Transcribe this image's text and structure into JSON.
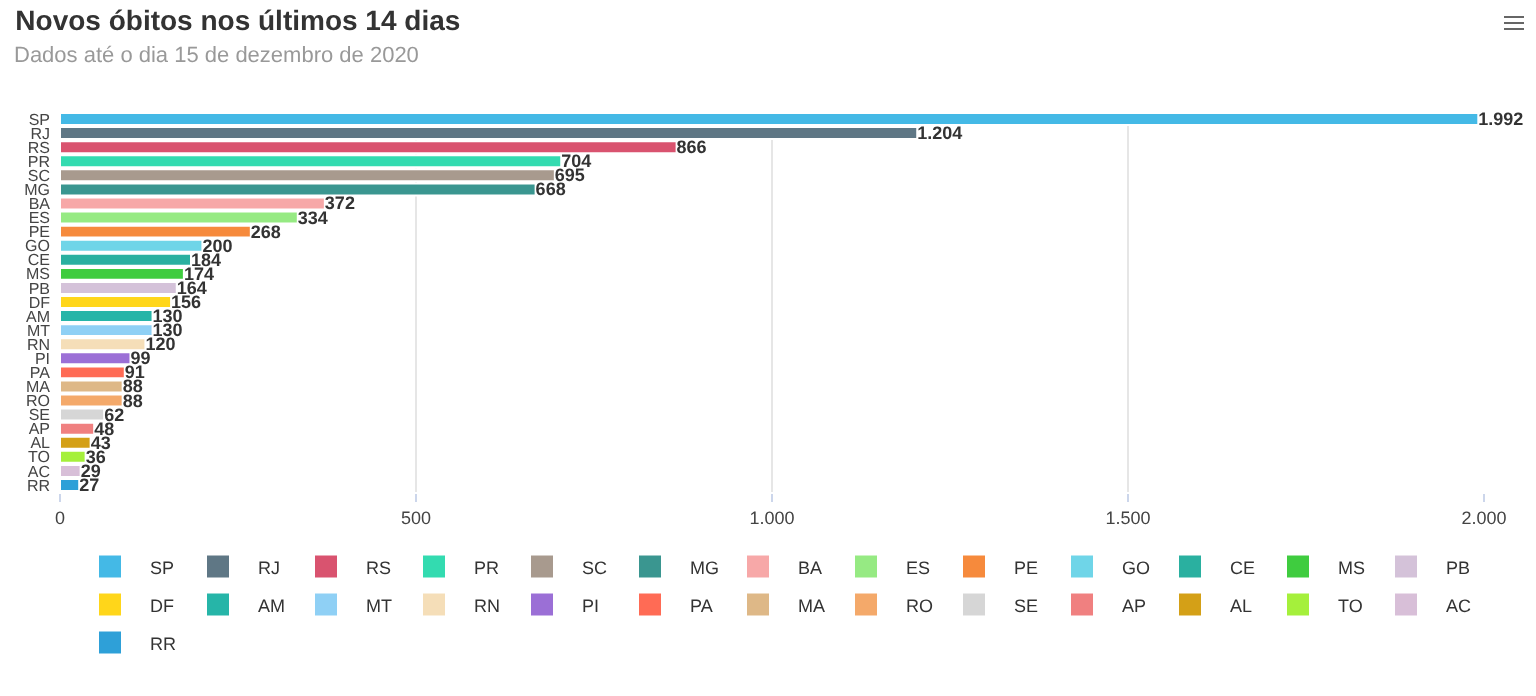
{
  "chart_data": {
    "type": "bar",
    "orientation": "horizontal",
    "title": "Novos óbitos nos últimos 14 dias",
    "subtitle": "Dados até o dia 15 de dezembro de 2020",
    "categories": [
      "SP",
      "RJ",
      "RS",
      "PR",
      "SC",
      "MG",
      "BA",
      "ES",
      "PE",
      "GO",
      "CE",
      "MS",
      "PB",
      "DF",
      "AM",
      "MT",
      "RN",
      "PI",
      "PA",
      "MA",
      "RO",
      "SE",
      "AP",
      "AL",
      "TO",
      "AC",
      "RR"
    ],
    "series": [
      {
        "name": "SP",
        "color": "#44b9e6",
        "values": [
          1992,
          null,
          null,
          null,
          null,
          null,
          null,
          null,
          null,
          null,
          null,
          null,
          null,
          null,
          null,
          null,
          null,
          null,
          null,
          null,
          null,
          null,
          null,
          null,
          null,
          null,
          null
        ],
        "value_labels": [
          "1.992",
          null,
          null,
          null,
          null,
          null,
          null,
          null,
          null,
          null,
          null,
          null,
          null,
          null,
          null,
          null,
          null,
          null,
          null,
          null,
          null,
          null,
          null,
          null,
          null,
          null,
          null
        ]
      },
      {
        "name": "RJ",
        "color": "#5f7785",
        "values": [
          null,
          1204,
          null,
          null,
          null,
          null,
          null,
          null,
          null,
          null,
          null,
          null,
          null,
          null,
          null,
          null,
          null,
          null,
          null,
          null,
          null,
          null,
          null,
          null,
          null,
          null,
          null
        ],
        "value_labels": [
          null,
          "1.204",
          null,
          null,
          null,
          null,
          null,
          null,
          null,
          null,
          null,
          null,
          null,
          null,
          null,
          null,
          null,
          null,
          null,
          null,
          null,
          null,
          null,
          null,
          null,
          null,
          null
        ]
      },
      {
        "name": "RS",
        "color": "#d9536f",
        "values": [
          null,
          null,
          866,
          null,
          null,
          null,
          null,
          null,
          null,
          null,
          null,
          null,
          null,
          null,
          null,
          null,
          null,
          null,
          null,
          null,
          null,
          null,
          null,
          null,
          null,
          null,
          null
        ]
      },
      {
        "name": "PR",
        "color": "#33dbb0",
        "values": [
          null,
          null,
          null,
          704,
          null,
          null,
          null,
          null,
          null,
          null,
          null,
          null,
          null,
          null,
          null,
          null,
          null,
          null,
          null,
          null,
          null,
          null,
          null,
          null,
          null,
          null,
          null
        ]
      },
      {
        "name": "SC",
        "color": "#a89a8e",
        "values": [
          null,
          null,
          null,
          null,
          695,
          null,
          null,
          null,
          null,
          null,
          null,
          null,
          null,
          null,
          null,
          null,
          null,
          null,
          null,
          null,
          null,
          null,
          null,
          null,
          null,
          null,
          null
        ]
      },
      {
        "name": "MG",
        "color": "#3a9690",
        "values": [
          null,
          null,
          null,
          null,
          null,
          668,
          null,
          null,
          null,
          null,
          null,
          null,
          null,
          null,
          null,
          null,
          null,
          null,
          null,
          null,
          null,
          null,
          null,
          null,
          null,
          null,
          null
        ]
      },
      {
        "name": "BA",
        "color": "#f7a8a8",
        "values": [
          null,
          null,
          null,
          null,
          null,
          null,
          372,
          null,
          null,
          null,
          null,
          null,
          null,
          null,
          null,
          null,
          null,
          null,
          null,
          null,
          null,
          null,
          null,
          null,
          null,
          null,
          null
        ]
      },
      {
        "name": "ES",
        "color": "#96ea83",
        "values": [
          null,
          null,
          null,
          null,
          null,
          null,
          null,
          334,
          null,
          null,
          null,
          null,
          null,
          null,
          null,
          null,
          null,
          null,
          null,
          null,
          null,
          null,
          null,
          null,
          null,
          null,
          null
        ]
      },
      {
        "name": "PE",
        "color": "#f68a3c",
        "values": [
          null,
          null,
          null,
          null,
          null,
          null,
          null,
          null,
          268,
          null,
          null,
          null,
          null,
          null,
          null,
          null,
          null,
          null,
          null,
          null,
          null,
          null,
          null,
          null,
          null,
          null,
          null
        ]
      },
      {
        "name": "GO",
        "color": "#6fd5e8",
        "values": [
          null,
          null,
          null,
          null,
          null,
          null,
          null,
          null,
          null,
          200,
          null,
          null,
          null,
          null,
          null,
          null,
          null,
          null,
          null,
          null,
          null,
          null,
          null,
          null,
          null,
          null,
          null
        ]
      },
      {
        "name": "CE",
        "color": "#2ab0a0",
        "values": [
          null,
          null,
          null,
          null,
          null,
          null,
          null,
          null,
          null,
          null,
          184,
          null,
          null,
          null,
          null,
          null,
          null,
          null,
          null,
          null,
          null,
          null,
          null,
          null,
          null,
          null,
          null
        ]
      },
      {
        "name": "MS",
        "color": "#3fcc3f",
        "values": [
          null,
          null,
          null,
          null,
          null,
          null,
          null,
          null,
          null,
          null,
          null,
          174,
          null,
          null,
          null,
          null,
          null,
          null,
          null,
          null,
          null,
          null,
          null,
          null,
          null,
          null,
          null
        ]
      },
      {
        "name": "PB",
        "color": "#d4c2d9",
        "values": [
          null,
          null,
          null,
          null,
          null,
          null,
          null,
          null,
          null,
          null,
          null,
          null,
          164,
          null,
          null,
          null,
          null,
          null,
          null,
          null,
          null,
          null,
          null,
          null,
          null,
          null,
          null
        ]
      },
      {
        "name": "DF",
        "color": "#ffd61a",
        "values": [
          null,
          null,
          null,
          null,
          null,
          null,
          null,
          null,
          null,
          null,
          null,
          null,
          null,
          156,
          null,
          null,
          null,
          null,
          null,
          null,
          null,
          null,
          null,
          null,
          null,
          null,
          null
        ]
      },
      {
        "name": "AM",
        "color": "#26b5a8",
        "values": [
          null,
          null,
          null,
          null,
          null,
          null,
          null,
          null,
          null,
          null,
          null,
          null,
          null,
          null,
          130,
          null,
          null,
          null,
          null,
          null,
          null,
          null,
          null,
          null,
          null,
          null,
          null
        ]
      },
      {
        "name": "MT",
        "color": "#8fd0f5",
        "values": [
          null,
          null,
          null,
          null,
          null,
          null,
          null,
          null,
          null,
          null,
          null,
          null,
          null,
          null,
          null,
          130,
          null,
          null,
          null,
          null,
          null,
          null,
          null,
          null,
          null,
          null,
          null
        ]
      },
      {
        "name": "RN",
        "color": "#f5deb8",
        "values": [
          null,
          null,
          null,
          null,
          null,
          null,
          null,
          null,
          null,
          null,
          null,
          null,
          null,
          null,
          null,
          null,
          120,
          null,
          null,
          null,
          null,
          null,
          null,
          null,
          null,
          null,
          null
        ]
      },
      {
        "name": "PI",
        "color": "#9b6fd6",
        "values": [
          null,
          null,
          null,
          null,
          null,
          null,
          null,
          null,
          null,
          null,
          null,
          null,
          null,
          null,
          null,
          null,
          null,
          99,
          null,
          null,
          null,
          null,
          null,
          null,
          null,
          null,
          null
        ]
      },
      {
        "name": "PA",
        "color": "#ff6b55",
        "values": [
          null,
          null,
          null,
          null,
          null,
          null,
          null,
          null,
          null,
          null,
          null,
          null,
          null,
          null,
          null,
          null,
          null,
          null,
          91,
          null,
          null,
          null,
          null,
          null,
          null,
          null,
          null
        ]
      },
      {
        "name": "MA",
        "color": "#deb887",
        "values": [
          null,
          null,
          null,
          null,
          null,
          null,
          null,
          null,
          null,
          null,
          null,
          null,
          null,
          null,
          null,
          null,
          null,
          null,
          null,
          88,
          null,
          null,
          null,
          null,
          null,
          null,
          null
        ]
      },
      {
        "name": "RO",
        "color": "#f4a96a",
        "values": [
          null,
          null,
          null,
          null,
          null,
          null,
          null,
          null,
          null,
          null,
          null,
          null,
          null,
          null,
          null,
          null,
          null,
          null,
          null,
          null,
          88,
          null,
          null,
          null,
          null,
          null,
          null
        ]
      },
      {
        "name": "SE",
        "color": "#d6d6d6",
        "values": [
          null,
          null,
          null,
          null,
          null,
          null,
          null,
          null,
          null,
          null,
          null,
          null,
          null,
          null,
          null,
          null,
          null,
          null,
          null,
          null,
          null,
          62,
          null,
          null,
          null,
          null,
          null
        ]
      },
      {
        "name": "AP",
        "color": "#f08080",
        "values": [
          null,
          null,
          null,
          null,
          null,
          null,
          null,
          null,
          null,
          null,
          null,
          null,
          null,
          null,
          null,
          null,
          null,
          null,
          null,
          null,
          null,
          null,
          48,
          null,
          null,
          null,
          null
        ]
      },
      {
        "name": "AL",
        "color": "#d4a017",
        "values": [
          null,
          null,
          null,
          null,
          null,
          null,
          null,
          null,
          null,
          null,
          null,
          null,
          null,
          null,
          null,
          null,
          null,
          null,
          null,
          null,
          null,
          null,
          null,
          43,
          null,
          null,
          null
        ]
      },
      {
        "name": "TO",
        "color": "#a5f03b",
        "values": [
          null,
          null,
          null,
          null,
          null,
          null,
          null,
          null,
          null,
          null,
          null,
          null,
          null,
          null,
          null,
          null,
          null,
          null,
          null,
          null,
          null,
          null,
          null,
          null,
          36,
          null,
          null
        ]
      },
      {
        "name": "AC",
        "color": "#d8bfd8",
        "values": [
          null,
          null,
          null,
          null,
          null,
          null,
          null,
          null,
          null,
          null,
          null,
          null,
          null,
          null,
          null,
          null,
          null,
          null,
          null,
          null,
          null,
          null,
          null,
          null,
          null,
          29,
          null
        ]
      },
      {
        "name": "RR",
        "color": "#2ea0d8",
        "values": [
          null,
          null,
          null,
          null,
          null,
          null,
          null,
          null,
          null,
          null,
          null,
          null,
          null,
          null,
          null,
          null,
          null,
          null,
          null,
          null,
          null,
          null,
          null,
          null,
          null,
          null,
          27
        ]
      }
    ],
    "data_labels": true,
    "xlim": [
      0,
      2000
    ],
    "xticks": [
      0,
      500,
      {
        "value": 1000,
        "label": "1.000"
      },
      {
        "value": 1500,
        "label": "1.500"
      },
      {
        "value": 2000,
        "label": "2.000"
      }
    ],
    "grid": "x",
    "legend": "bottom"
  }
}
